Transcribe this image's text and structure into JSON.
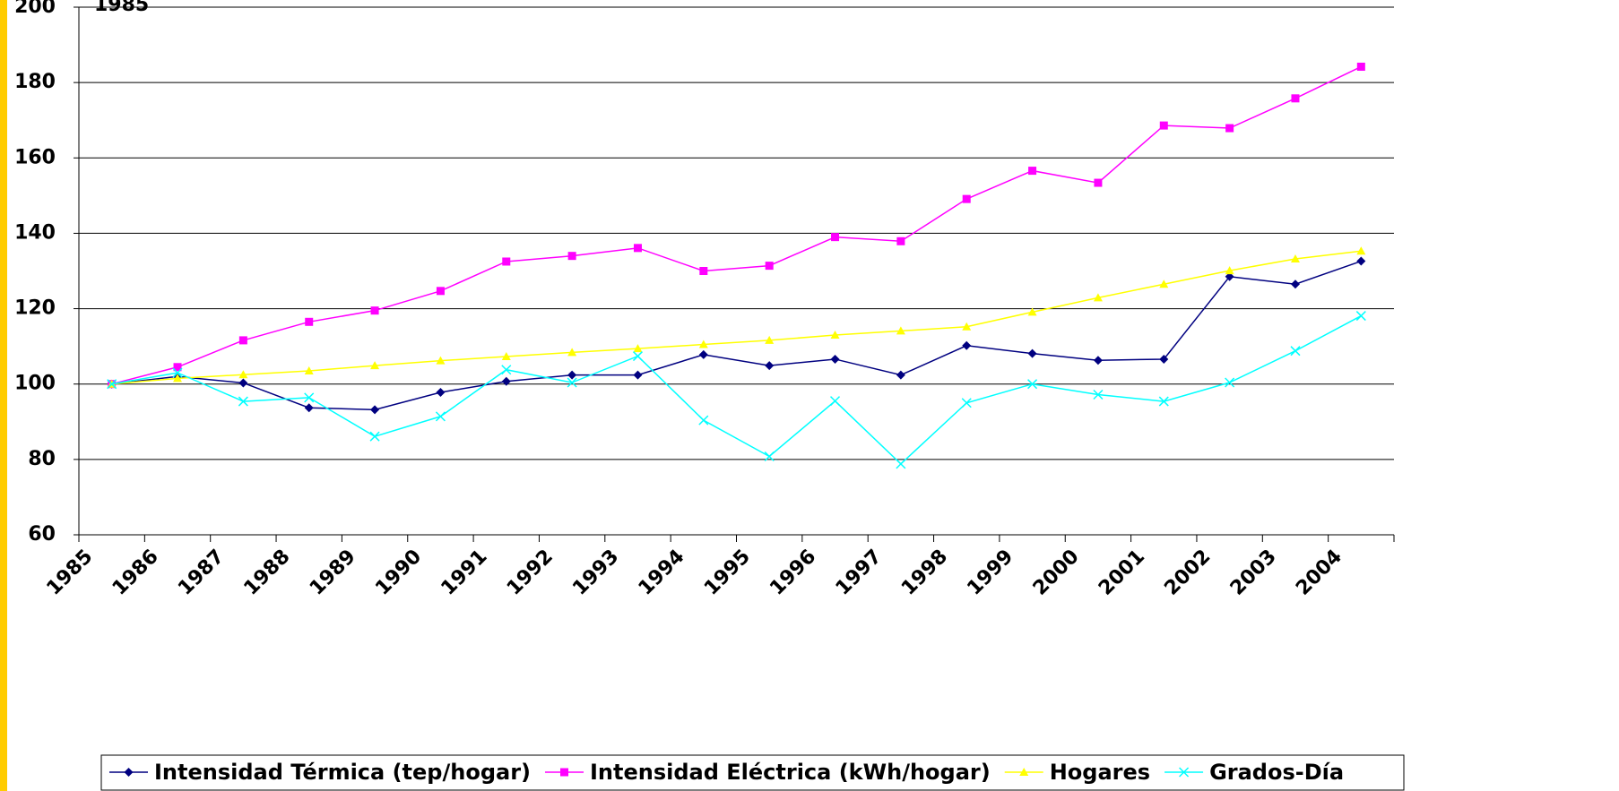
{
  "chart_data": {
    "type": "line",
    "annotation": "1985",
    "categories": [
      "1985",
      "1986",
      "1987",
      "1988",
      "1989",
      "1990",
      "1991",
      "1992",
      "1993",
      "1994",
      "1995",
      "1996",
      "1997",
      "1998",
      "1999",
      "2000",
      "2001",
      "2002",
      "2003",
      "2004"
    ],
    "series": [
      {
        "name": "Intensidad Térmica (tep/hogar)",
        "color": "#000080",
        "marker": "diamond",
        "values": [
          100,
          102,
          100.3,
          93.7,
          93.2,
          97.8,
          100.7,
          102.4,
          102.4,
          107.8,
          104.9,
          106.6,
          102.4,
          110.2,
          108.1,
          106.3,
          106.6,
          128.5,
          126.5,
          132.6
        ]
      },
      {
        "name": "Intensidad Eléctrica (kWh/hogar)",
        "color": "#ff00ff",
        "marker": "square",
        "values": [
          100,
          104.5,
          111.6,
          116.5,
          119.5,
          124.7,
          132.5,
          134,
          136.1,
          130,
          131.4,
          139,
          137.9,
          149.1,
          156.6,
          153.4,
          168.6,
          167.9,
          175.8,
          184.2
        ]
      },
      {
        "name": "Hogares",
        "color": "#ffff00",
        "marker": "triangle",
        "values": [
          100,
          101.5,
          102.5,
          103.5,
          104.9,
          106.2,
          107.3,
          108.4,
          109.4,
          110.5,
          111.6,
          113,
          114.1,
          115.2,
          119.1,
          122.9,
          126.5,
          130.1,
          133.2,
          135.3
        ]
      },
      {
        "name": "Grados-Día",
        "color": "#00ffff",
        "marker": "x",
        "values": [
          100,
          103,
          95.4,
          96.4,
          86.1,
          91.4,
          103.8,
          100.4,
          107.4,
          90.4,
          80.8,
          95.5,
          78.8,
          95,
          100,
          97.2,
          95.4,
          100.4,
          108.8,
          118.1
        ]
      }
    ],
    "ylim": [
      60,
      200
    ],
    "yticks": [
      60,
      80,
      100,
      120,
      140,
      160,
      180,
      200
    ],
    "grid": true,
    "legend": "bottom"
  }
}
